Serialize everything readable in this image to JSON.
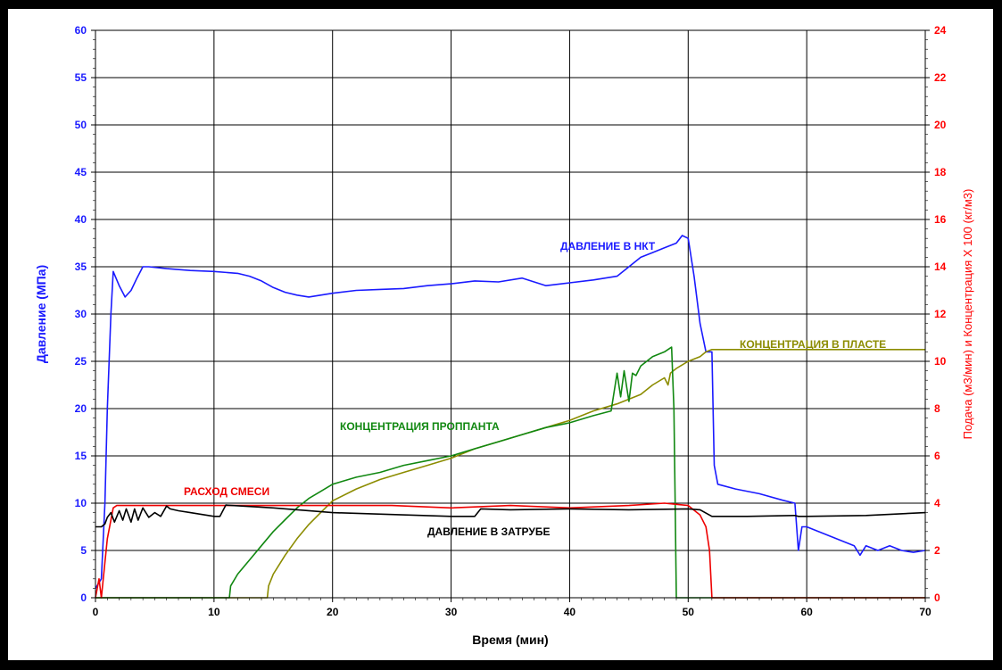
{
  "chart_data": {
    "type": "line",
    "xlabel": "Время (мин)",
    "ylabel": "Давление (МПа)",
    "y2label": "Подача (м3/мин) и Концентрация X 100 (кг/м3)",
    "xlim": [
      0,
      70
    ],
    "ylim": [
      0,
      60
    ],
    "y2lim": [
      0,
      24
    ],
    "x_ticks": [
      0,
      10,
      20,
      30,
      40,
      50,
      60,
      70
    ],
    "y_ticks": [
      0,
      5,
      10,
      15,
      20,
      25,
      30,
      35,
      40,
      45,
      50,
      55,
      60
    ],
    "y2_ticks": [
      0,
      2,
      4,
      6,
      8,
      10,
      12,
      14,
      16,
      18,
      20,
      22,
      24
    ],
    "grid": true,
    "annotations": [
      {
        "text": "ДАВЛЕНИЕ В НКТ",
        "series": "ДАВЛЕНИЕ В НКТ",
        "color": "#1a1aff"
      },
      {
        "text": "КОНЦЕНТРАЦИЯ В ПЛАСТЕ",
        "series": "КОНЦЕНТРАЦИЯ В ПЛАСТЕ",
        "color": "#8c8c00"
      },
      {
        "text": "КОНЦЕНТРАЦИЯ ПРОППАНТА",
        "series": "КОНЦЕНТРАЦИЯ ПРОППАНТА",
        "color": "#118811"
      },
      {
        "text": "РАСХОД СМЕСИ",
        "series": "РАСХОД СМЕСИ",
        "color": "#ee0000"
      },
      {
        "text": "ДАВЛЕНИЕ В ЗАТРУБЕ",
        "series": "ДАВЛЕНИЕ В ЗАТРУБЕ",
        "color": "#000000"
      }
    ],
    "series": [
      {
        "name": "ДАВЛЕНИЕ В НКТ",
        "axis": "left",
        "color": "#1a1aff",
        "x": [
          0,
          0.5,
          0.8,
          1.0,
          1.3,
          1.5,
          2.0,
          2.5,
          3.0,
          3.5,
          4.0,
          4.5,
          6,
          8,
          10,
          12,
          13,
          14,
          15,
          16,
          17,
          18,
          19,
          20,
          22,
          24,
          26,
          28,
          30,
          32,
          34,
          36,
          38,
          40,
          42,
          44,
          45,
          46,
          47,
          48,
          49,
          49.5,
          50,
          50.5,
          51,
          51.5,
          52,
          52.2,
          52.5,
          54,
          56,
          58,
          59,
          59.3,
          59.6,
          60,
          62,
          64,
          64.5,
          65,
          66,
          67,
          68,
          69,
          70
        ],
        "y": [
          1,
          2,
          10,
          20,
          30,
          34.5,
          33,
          31.8,
          32.5,
          33.8,
          35,
          35,
          34.8,
          34.6,
          34.5,
          34.3,
          34,
          33.5,
          32.8,
          32.3,
          32,
          31.8,
          32.0,
          32.2,
          32.5,
          32.6,
          32.7,
          33,
          33.2,
          33.5,
          33.4,
          33.8,
          33,
          33.3,
          33.6,
          34,
          35,
          36,
          36.5,
          37,
          37.5,
          38.3,
          38,
          34,
          29,
          26,
          26,
          14,
          12,
          11.5,
          11,
          10.3,
          10,
          5,
          7.5,
          7.5,
          6.5,
          5.5,
          4.5,
          5.5,
          5,
          5.5,
          5,
          4.8,
          5
        ]
      },
      {
        "name": "КОНЦЕНТРАЦИЯ В ПЛАСТЕ",
        "axis": "right",
        "color": "#8c8c00",
        "x": [
          0,
          14.5,
          14.6,
          15,
          16,
          17,
          18,
          19,
          20,
          22,
          24,
          26,
          28,
          30,
          32,
          34,
          36,
          38,
          40,
          42,
          44,
          46,
          47,
          48,
          48.3,
          48.5,
          49,
          50,
          51,
          51.5,
          52,
          70
        ],
        "y": [
          0,
          0,
          0.5,
          1,
          1.8,
          2.5,
          3.1,
          3.6,
          4.1,
          4.6,
          5.0,
          5.3,
          5.6,
          5.9,
          6.3,
          6.6,
          6.9,
          7.2,
          7.5,
          7.9,
          8.2,
          8.6,
          9.0,
          9.3,
          9.0,
          9.5,
          9.7,
          10.0,
          10.2,
          10.4,
          10.5,
          10.5
        ]
      },
      {
        "name": "КОНЦЕНТРАЦИЯ ПРОППАНТА",
        "axis": "right",
        "color": "#118811",
        "x": [
          0,
          11.3,
          11.4,
          12,
          13,
          14,
          15,
          16,
          17,
          18,
          19,
          20,
          22,
          24,
          26,
          28,
          30,
          32,
          34,
          36,
          38,
          40,
          42,
          43.5,
          44,
          44.3,
          44.6,
          45,
          45.3,
          45.6,
          46,
          47,
          48,
          48.6,
          48.8,
          48.9,
          49.0,
          70
        ],
        "y": [
          0,
          0,
          0.5,
          1.0,
          1.6,
          2.2,
          2.8,
          3.3,
          3.8,
          4.2,
          4.5,
          4.8,
          5.1,
          5.3,
          5.6,
          5.8,
          6.0,
          6.3,
          6.6,
          6.9,
          7.2,
          7.4,
          7.7,
          7.9,
          9.5,
          8.5,
          9.6,
          8.3,
          9.5,
          9.4,
          9.8,
          10.2,
          10.4,
          10.6,
          8.0,
          4.0,
          0,
          0
        ]
      },
      {
        "name": "РАСХОД СМЕСИ",
        "axis": "right",
        "color": "#ee0000",
        "x": [
          0,
          0.3,
          0.5,
          0.8,
          1.0,
          1.5,
          1.8,
          2.5,
          5,
          10,
          15,
          20,
          25,
          30,
          35,
          40,
          45,
          48,
          50,
          51,
          51.5,
          51.8,
          52.0,
          70
        ],
        "y": [
          0,
          0.8,
          0,
          1.5,
          2.5,
          3.8,
          3.9,
          3.9,
          3.9,
          3.9,
          3.9,
          3.9,
          3.9,
          3.8,
          3.9,
          3.8,
          3.9,
          4.0,
          3.9,
          3.5,
          3.0,
          2.0,
          0,
          0
        ]
      },
      {
        "name": "ДАВЛЕНИЕ В ЗАТРУБЕ",
        "axis": "left",
        "color": "#000000",
        "x": [
          0,
          0.5,
          0.8,
          1.0,
          1.3,
          1.6,
          2.0,
          2.3,
          2.6,
          3.0,
          3.3,
          3.6,
          4.0,
          4.5,
          5.0,
          5.5,
          6.0,
          6.3,
          7,
          8,
          9,
          10,
          10.5,
          11,
          15,
          20,
          25,
          30,
          32,
          32.5,
          35,
          40,
          45,
          50,
          51,
          52,
          55,
          59,
          59.3,
          60,
          65,
          70
        ],
        "y": [
          7.5,
          7.5,
          7.8,
          8.5,
          9.0,
          8.0,
          9.2,
          8.2,
          9.4,
          8.0,
          9.4,
          8.2,
          9.5,
          8.5,
          9.0,
          8.6,
          9.7,
          9.4,
          9.2,
          9.0,
          8.8,
          8.6,
          8.6,
          9.8,
          9.5,
          9.0,
          8.8,
          8.6,
          8.6,
          9.4,
          9.3,
          9.4,
          9.3,
          9.4,
          9.3,
          8.6,
          8.6,
          8.7,
          8.6,
          8.6,
          8.7,
          9.0
        ]
      }
    ]
  }
}
